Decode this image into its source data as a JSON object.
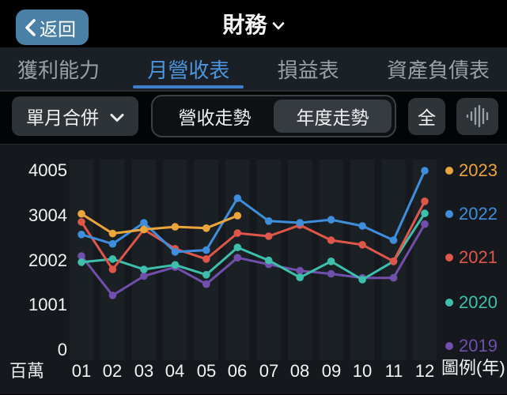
{
  "nav": {
    "back_label": "返回",
    "title": "財務",
    "back_color": "#4B80A6"
  },
  "tabs": [
    {
      "label": "獲利能力",
      "active": false
    },
    {
      "label": "月營收表",
      "active": true
    },
    {
      "label": "損益表",
      "active": false
    },
    {
      "label": "資產負債表",
      "active": false
    }
  ],
  "tab_accent_color": "#4A96DF",
  "controls": {
    "dropdown_label": "單月合併",
    "segmented": [
      {
        "label": "營收走勢",
        "selected": false
      },
      {
        "label": "年度走勢",
        "selected": true
      }
    ],
    "all_label": "全",
    "waveform_icon": "waveform-icon"
  },
  "chart_data": {
    "type": "line",
    "unit_label": "百萬",
    "legend_title": "圖例(年)",
    "legend_position": "right",
    "grid": "vertical-month-bands",
    "x_categories": [
      "01",
      "02",
      "03",
      "04",
      "05",
      "06",
      "07",
      "08",
      "09",
      "10",
      "11",
      "12"
    ],
    "y_ticks": [
      0,
      1001,
      2002,
      3004,
      4005
    ],
    "ylim": [
      0,
      4300
    ],
    "series": [
      {
        "name": "2023",
        "color": "#ECA43D",
        "values": [
          3040,
          2600,
          2690,
          2750,
          2720,
          3000
        ]
      },
      {
        "name": "2022",
        "color": "#3F8EDC",
        "values": [
          2580,
          2370,
          2840,
          2190,
          2230,
          3390,
          2880,
          2840,
          2910,
          2770,
          2450,
          4005
        ]
      },
      {
        "name": "2021",
        "color": "#DF574A",
        "values": [
          2860,
          1800,
          2690,
          2260,
          2030,
          2610,
          2540,
          2790,
          2450,
          2350,
          1980,
          3320
        ]
      },
      {
        "name": "2020",
        "color": "#3EBFAC",
        "values": [
          1960,
          2030,
          1800,
          1900,
          1680,
          2290,
          2000,
          1620,
          1980,
          1570,
          1980,
          3050
        ]
      },
      {
        "name": "2019",
        "color": "#7050AC",
        "values": [
          2100,
          1220,
          1650,
          1850,
          1470,
          2060,
          1910,
          1770,
          1700,
          1610,
          1610,
          2810
        ]
      }
    ]
  }
}
